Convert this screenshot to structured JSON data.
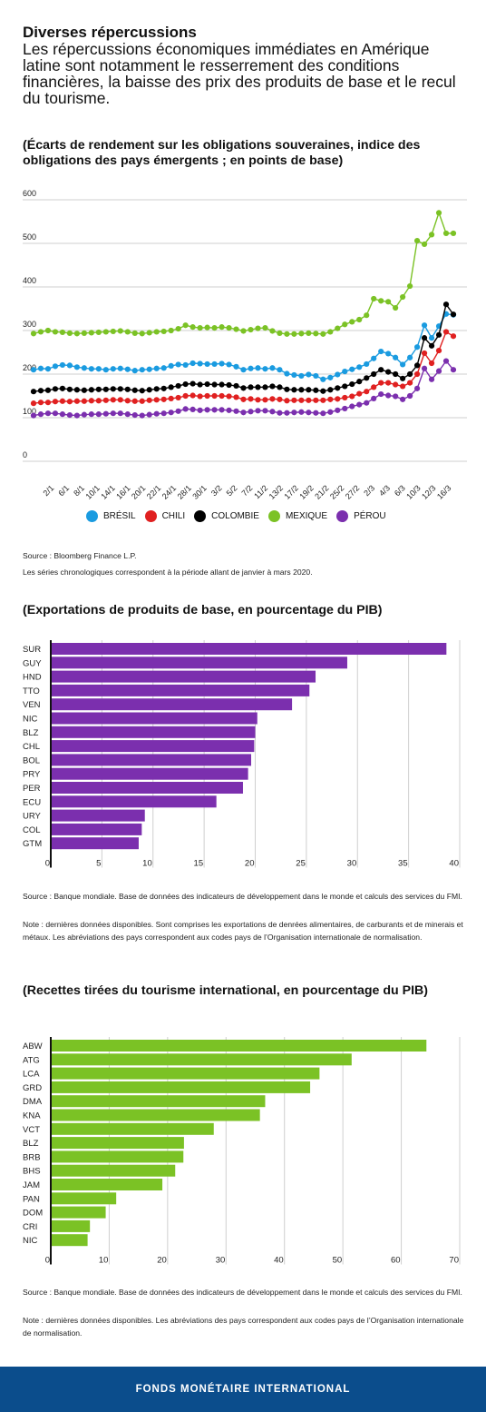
{
  "header": {
    "title": "Diverses répercussions",
    "lead": "Les répercussions économiques immédiates en Amérique latine sont notamment le resserrement des conditions financières, la baisse des prix des produits de base et le recul du tourisme."
  },
  "chart1": {
    "subtitle": "(Écarts de rendement sur les obligations souveraines, indice des obligations des pays émergents ; en points de base)",
    "source": "Source : Bloomberg Finance L.P.",
    "note": "Les séries chronologiques correspondent à la période allant de janvier à mars 2020."
  },
  "chart2": {
    "subtitle": "(Exportations de produits de base, en pourcentage du PIB)",
    "source": "Source : Banque mondiale. Base de données des indicateurs de développement dans le monde et calculs des services du FMI.",
    "note": "Note : dernières données disponibles. Sont comprises les exportations de denrées alimentaires, de carburants et de minerais et métaux. Les abréviations des pays correspondent aux codes pays de l’Organisation internationale de normalisation."
  },
  "chart3": {
    "subtitle": "(Recettes tirées du tourisme international, en pourcentage du PIB)",
    "source": "Source : Banque mondiale. Base de données des indicateurs de développement dans le monde et calculs des services du FMI.",
    "note": "Note : dernières données disponibles. Les abréviations des pays correspondent aux codes pays de l’Organisation internationale de normalisation."
  },
  "footer": {
    "label": "FONDS MONÉTAIRE INTERNATIONAL"
  },
  "colors": {
    "bresil": "#1a9be0",
    "chili": "#e02020",
    "colombie": "#000000",
    "mexique": "#7bc225",
    "perou": "#7b2fae",
    "exports_bar": "#7b2fae",
    "tourism_bar": "#7bc225",
    "grid": "#cfcfcf"
  },
  "chart_data": [
    {
      "type": "line",
      "ylim": [
        0,
        600
      ],
      "yticks": [
        0,
        100,
        200,
        300,
        400,
        500,
        600
      ],
      "x_tick_labels": [
        "2/1",
        "6/1",
        "8/1",
        "10/1",
        "14/1",
        "16/1",
        "20/1",
        "22/1",
        "24/1",
        "28/1",
        "30/1",
        "3/2",
        "5/2",
        "7/2",
        "11/2",
        "13/2",
        "17/2",
        "19/2",
        "21/2",
        "25/2",
        "27/2",
        "2/3",
        "4/3",
        "6/3",
        "10/3",
        "12/3",
        "16/3"
      ],
      "legend_position": "bottom",
      "series": [
        {
          "name": "BRÉSIL",
          "color": "#1a9be0",
          "values": [
            210,
            213,
            212,
            218,
            221,
            220,
            216,
            214,
            212,
            212,
            210,
            212,
            213,
            211,
            208,
            210,
            211,
            213,
            214,
            219,
            222,
            221,
            225,
            224,
            223,
            223,
            224,
            222,
            217,
            210,
            213,
            214,
            212,
            214,
            210,
            201,
            198,
            196,
            199,
            196,
            188,
            192,
            199,
            206,
            211,
            216,
            223,
            236,
            252,
            247,
            238,
            222,
            238,
            262,
            312,
            283,
            310,
            338,
            336
          ]
        },
        {
          "name": "CHILI",
          "color": "#e02020",
          "values": [
            133,
            135,
            135,
            137,
            138,
            137,
            138,
            138,
            139,
            139,
            140,
            141,
            141,
            139,
            138,
            138,
            140,
            141,
            142,
            144,
            146,
            150,
            151,
            149,
            150,
            150,
            150,
            149,
            147,
            142,
            143,
            141,
            141,
            143,
            142,
            139,
            140,
            140,
            140,
            140,
            140,
            142,
            143,
            146,
            149,
            155,
            160,
            170,
            180,
            180,
            176,
            172,
            180,
            200,
            248,
            225,
            254,
            297,
            287
          ]
        },
        {
          "name": "COLOMBIE",
          "color": "#000000",
          "values": [
            160,
            162,
            163,
            166,
            167,
            165,
            164,
            163,
            164,
            165,
            165,
            166,
            166,
            165,
            163,
            162,
            164,
            166,
            167,
            170,
            173,
            177,
            178,
            176,
            177,
            176,
            176,
            175,
            173,
            168,
            170,
            170,
            170,
            172,
            170,
            165,
            164,
            164,
            164,
            163,
            161,
            164,
            168,
            172,
            177,
            183,
            191,
            200,
            210,
            205,
            200,
            190,
            200,
            220,
            283,
            265,
            290,
            360,
            337
          ]
        },
        {
          "name": "MEXIQUE",
          "color": "#7bc225",
          "values": [
            293,
            297,
            300,
            297,
            296,
            294,
            293,
            294,
            295,
            296,
            297,
            298,
            299,
            297,
            294,
            293,
            295,
            297,
            298,
            300,
            304,
            312,
            308,
            306,
            307,
            306,
            308,
            306,
            303,
            299,
            302,
            305,
            306,
            299,
            294,
            292,
            292,
            293,
            294,
            293,
            292,
            297,
            305,
            314,
            320,
            325,
            335,
            373,
            368,
            366,
            352,
            377,
            402,
            506,
            498,
            520,
            570,
            523,
            523
          ]
        },
        {
          "name": "PÉROU",
          "color": "#7b2fae",
          "values": [
            105,
            108,
            110,
            110,
            108,
            106,
            105,
            107,
            108,
            108,
            109,
            110,
            110,
            108,
            106,
            105,
            107,
            109,
            110,
            112,
            115,
            120,
            119,
            117,
            118,
            118,
            118,
            117,
            115,
            112,
            114,
            116,
            116,
            114,
            111,
            111,
            112,
            113,
            112,
            111,
            110,
            113,
            117,
            121,
            126,
            130,
            134,
            144,
            154,
            151,
            149,
            142,
            150,
            167,
            213,
            188,
            207,
            230,
            210
          ]
        }
      ]
    },
    {
      "type": "bar",
      "orientation": "horizontal",
      "categories": [
        "SUR",
        "GUY",
        "HND",
        "TTO",
        "VEN",
        "NIC",
        "BLZ",
        "CHL",
        "BOL",
        "PRY",
        "PER",
        "ECU",
        "URY",
        "COL",
        "GTM"
      ],
      "values": [
        38.7,
        29.0,
        25.9,
        25.3,
        23.6,
        20.2,
        20.0,
        19.9,
        19.6,
        19.3,
        18.8,
        16.2,
        9.2,
        8.9,
        8.6
      ],
      "xlim": [
        0,
        40
      ],
      "xticks": [
        0,
        5,
        10,
        15,
        20,
        25,
        30,
        35,
        40
      ],
      "color": "#7b2fae"
    },
    {
      "type": "bar",
      "orientation": "horizontal",
      "categories": [
        "ABW",
        "ATG",
        "LCA",
        "GRD",
        "DMA",
        "KNA",
        "VCT",
        "BLZ",
        "BRB",
        "BHS",
        "JAM",
        "PAN",
        "DOM",
        "CRI",
        "NIC"
      ],
      "values": [
        64.3,
        51.5,
        46.0,
        44.4,
        36.7,
        35.8,
        27.9,
        22.8,
        22.7,
        21.3,
        19.1,
        11.2,
        9.4,
        6.7,
        6.3
      ],
      "xlim": [
        0,
        70
      ],
      "xticks": [
        0,
        10,
        20,
        30,
        40,
        50,
        60,
        70
      ],
      "color": "#7bc225"
    }
  ]
}
